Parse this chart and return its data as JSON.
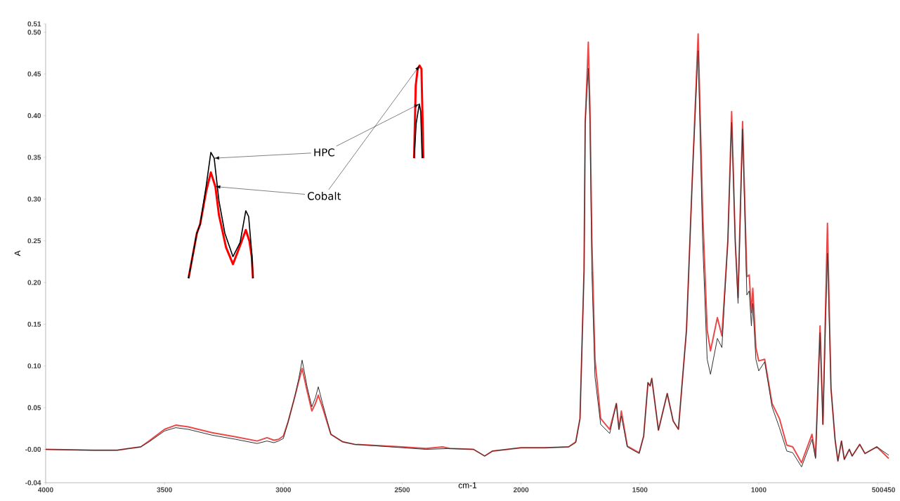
{
  "chart_data": {
    "type": "line",
    "xlabel": "cm-1",
    "ylabel": "A",
    "xlim": [
      4000,
      450
    ],
    "ylim": [
      -0.04,
      0.51
    ],
    "xticks": [
      4000,
      3500,
      3000,
      2500,
      2000,
      1500,
      1000,
      500,
      450
    ],
    "yticks": [
      -0.04,
      {
        "value": 0,
        "label": "-0.00"
      },
      0.05,
      {
        "value": 0.1,
        "label": "0.10"
      },
      0.15,
      {
        "value": 0.2,
        "label": "0.20"
      },
      0.25,
      {
        "value": 0.3,
        "label": "0.30"
      },
      0.35,
      {
        "value": 0.4,
        "label": "0.40"
      },
      0.45,
      {
        "value": 0.5,
        "label": "0.50"
      },
      0.51
    ],
    "annotations": [
      {
        "text": "HPC",
        "x": 3291,
        "y": 0.349
      },
      {
        "text": "Cobalt",
        "x": 3286,
        "y": 0.315
      }
    ],
    "series": [
      {
        "color": "#333333",
        "x": [
          4000,
          3800,
          3700,
          3650,
          3600,
          3565,
          3500,
          3453,
          3400,
          3300,
          3200,
          3110,
          3069,
          3040,
          3020,
          3000,
          2980,
          2952,
          2935,
          2921,
          2900,
          2880,
          2865,
          2853,
          2835,
          2800,
          2750,
          2700,
          2500,
          2400,
          2300,
          2200,
          2153,
          2120,
          2000,
          1900,
          1800,
          1770,
          1752,
          1735,
          1730,
          1717,
          1710,
          1702,
          1689,
          1665,
          1627,
          1599,
          1588,
          1578,
          1553,
          1503,
          1484,
          1466,
          1457,
          1450,
          1422,
          1385,
          1360,
          1338,
          1304,
          1280,
          1255,
          1236,
          1217,
          1203,
          1174,
          1155,
          1130,
          1114,
          1099,
          1087,
          1068,
          1050,
          1040,
          1031,
          1025,
          1012,
          1000,
          975,
          944,
          913,
          882,
          857,
          820,
          776,
          761,
          742,
          730,
          711,
          696,
          679,
          667,
          652,
          640,
          619,
          607,
          575,
          553,
          503,
          453
        ],
        "values": [
          0.0,
          -0.001,
          -0.001,
          0.001,
          0.003,
          0.009,
          0.022,
          0.026,
          0.024,
          0.017,
          0.012,
          0.007,
          0.01,
          0.008,
          0.01,
          0.013,
          0.033,
          0.063,
          0.085,
          0.107,
          0.075,
          0.051,
          0.062,
          0.075,
          0.055,
          0.018,
          0.009,
          0.006,
          0.002,
          0.0,
          0.001,
          0.0,
          -0.008,
          -0.002,
          0.002,
          0.002,
          0.003,
          0.008,
          0.037,
          0.214,
          0.392,
          0.457,
          0.39,
          0.214,
          0.087,
          0.03,
          0.019,
          0.055,
          0.024,
          0.04,
          0.003,
          -0.005,
          0.016,
          0.08,
          0.076,
          0.085,
          0.023,
          0.067,
          0.034,
          0.024,
          0.143,
          0.321,
          0.478,
          0.25,
          0.108,
          0.09,
          0.133,
          0.122,
          0.25,
          0.392,
          0.25,
          0.175,
          0.384,
          0.185,
          0.19,
          0.148,
          0.175,
          0.108,
          0.094,
          0.105,
          0.051,
          0.026,
          -0.002,
          -0.004,
          -0.021,
          0.012,
          -0.011,
          0.14,
          0.03,
          0.235,
          0.073,
          0.012,
          -0.014,
          0.01,
          -0.012,
          0.0,
          -0.008,
          0.006,
          -0.005,
          0.003,
          -0.007
        ]
      },
      {
        "color": "#e84a4a",
        "x": [
          4000,
          3800,
          3700,
          3650,
          3600,
          3565,
          3500,
          3453,
          3400,
          3300,
          3200,
          3110,
          3069,
          3040,
          3020,
          3000,
          2980,
          2952,
          2935,
          2921,
          2900,
          2880,
          2865,
          2853,
          2835,
          2800,
          2750,
          2700,
          2500,
          2400,
          2330,
          2300,
          2200,
          2153,
          2120,
          2000,
          1900,
          1800,
          1770,
          1752,
          1735,
          1730,
          1717,
          1710,
          1702,
          1689,
          1665,
          1627,
          1599,
          1588,
          1578,
          1553,
          1503,
          1484,
          1466,
          1457,
          1450,
          1422,
          1385,
          1360,
          1338,
          1304,
          1280,
          1255,
          1236,
          1217,
          1203,
          1174,
          1155,
          1130,
          1114,
          1099,
          1087,
          1068,
          1050,
          1040,
          1031,
          1025,
          1012,
          1000,
          975,
          944,
          913,
          882,
          857,
          820,
          776,
          761,
          742,
          730,
          711,
          696,
          679,
          667,
          652,
          640,
          619,
          607,
          575,
          553,
          503,
          453
        ],
        "values": [
          0.0,
          -0.001,
          -0.001,
          0.001,
          0.003,
          0.01,
          0.024,
          0.029,
          0.027,
          0.02,
          0.015,
          0.01,
          0.014,
          0.011,
          0.012,
          0.016,
          0.033,
          0.063,
          0.082,
          0.097,
          0.07,
          0.046,
          0.055,
          0.065,
          0.05,
          0.018,
          0.009,
          0.006,
          0.003,
          0.001,
          0.003,
          0.001,
          0.0,
          -0.008,
          -0.002,
          0.002,
          0.002,
          0.003,
          0.009,
          0.037,
          0.214,
          0.392,
          0.488,
          0.41,
          0.25,
          0.108,
          0.037,
          0.024,
          0.055,
          0.024,
          0.046,
          0.004,
          -0.004,
          0.016,
          0.08,
          0.076,
          0.085,
          0.023,
          0.067,
          0.034,
          0.024,
          0.143,
          0.321,
          0.498,
          0.285,
          0.143,
          0.118,
          0.158,
          0.136,
          0.25,
          0.405,
          0.25,
          0.182,
          0.393,
          0.207,
          0.209,
          0.164,
          0.193,
          0.122,
          0.106,
          0.108,
          0.055,
          0.037,
          0.005,
          0.003,
          -0.016,
          0.018,
          -0.009,
          0.148,
          0.03,
          0.271,
          0.073,
          0.012,
          -0.014,
          0.01,
          -0.012,
          0.0,
          -0.008,
          0.006,
          -0.005,
          0.003,
          -0.011
        ]
      },
      {
        "color": "#000000",
        "x": [
          3399,
          3364,
          3350,
          3325,
          3305,
          3291,
          3271,
          3246,
          3212,
          3182,
          3158,
          3146,
          3133,
          3128
        ],
        "values": [
          0.205,
          0.259,
          0.27,
          0.315,
          0.356,
          0.349,
          0.298,
          0.259,
          0.231,
          0.248,
          0.286,
          0.279,
          0.236,
          0.205
        ]
      },
      {
        "color": "#ff0000",
        "x": [
          3399,
          3364,
          3350,
          3325,
          3305,
          3286,
          3271,
          3241,
          3212,
          3177,
          3158,
          3143,
          3133,
          3128
        ],
        "values": [
          0.205,
          0.259,
          0.27,
          0.309,
          0.332,
          0.315,
          0.281,
          0.242,
          0.222,
          0.248,
          0.263,
          0.25,
          0.231,
          0.205
        ]
      },
      {
        "color": "#000000",
        "x": [
          2450,
          2441,
          2428,
          2422,
          2416
        ],
        "values": [
          0.349,
          0.391,
          0.414,
          0.405,
          0.349
        ]
      },
      {
        "color": "#ff0000",
        "x": [
          2450,
          2443,
          2435,
          2427,
          2419,
          2415,
          2411
        ],
        "values": [
          0.349,
          0.436,
          0.456,
          0.46,
          0.456,
          0.405,
          0.349
        ]
      }
    ]
  }
}
